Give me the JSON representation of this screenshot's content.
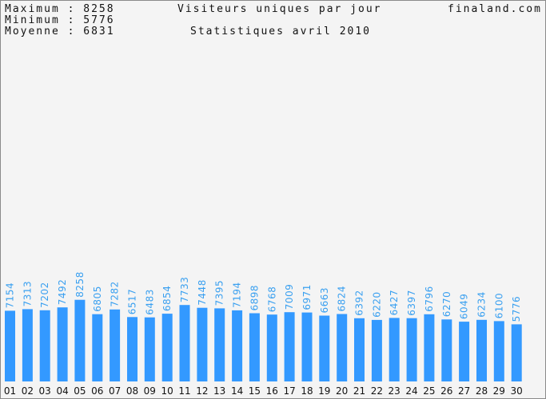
{
  "stats": {
    "max_label": "Maximum : 8258",
    "min_label": "Minimum : 5776",
    "avg_label": "Moyenne : 6831"
  },
  "header": {
    "title": "Visiteurs uniques par jour",
    "subtitle": "Statistiques avril 2010",
    "site": "finaland.com"
  },
  "colors": {
    "bar": "#3399ff",
    "label": "#3aa0f0",
    "background": "#f4f4f4"
  },
  "chart_data": {
    "type": "bar",
    "title": "Visiteurs uniques par jour",
    "subtitle": "Statistiques avril 2010",
    "categories": [
      "01",
      "02",
      "03",
      "04",
      "05",
      "06",
      "07",
      "08",
      "09",
      "10",
      "11",
      "12",
      "13",
      "14",
      "15",
      "16",
      "17",
      "18",
      "19",
      "20",
      "21",
      "22",
      "23",
      "24",
      "25",
      "26",
      "27",
      "28",
      "29",
      "30"
    ],
    "values": [
      7154,
      7313,
      7202,
      7492,
      8258,
      6805,
      7282,
      6517,
      6483,
      6854,
      7733,
      7448,
      7395,
      7194,
      6898,
      6768,
      7009,
      6971,
      6663,
      6824,
      6392,
      6220,
      6427,
      6397,
      6796,
      6270,
      6049,
      6234,
      6100,
      5776
    ],
    "ylim": [
      0,
      36000
    ],
    "grid": false,
    "legend": "none"
  }
}
